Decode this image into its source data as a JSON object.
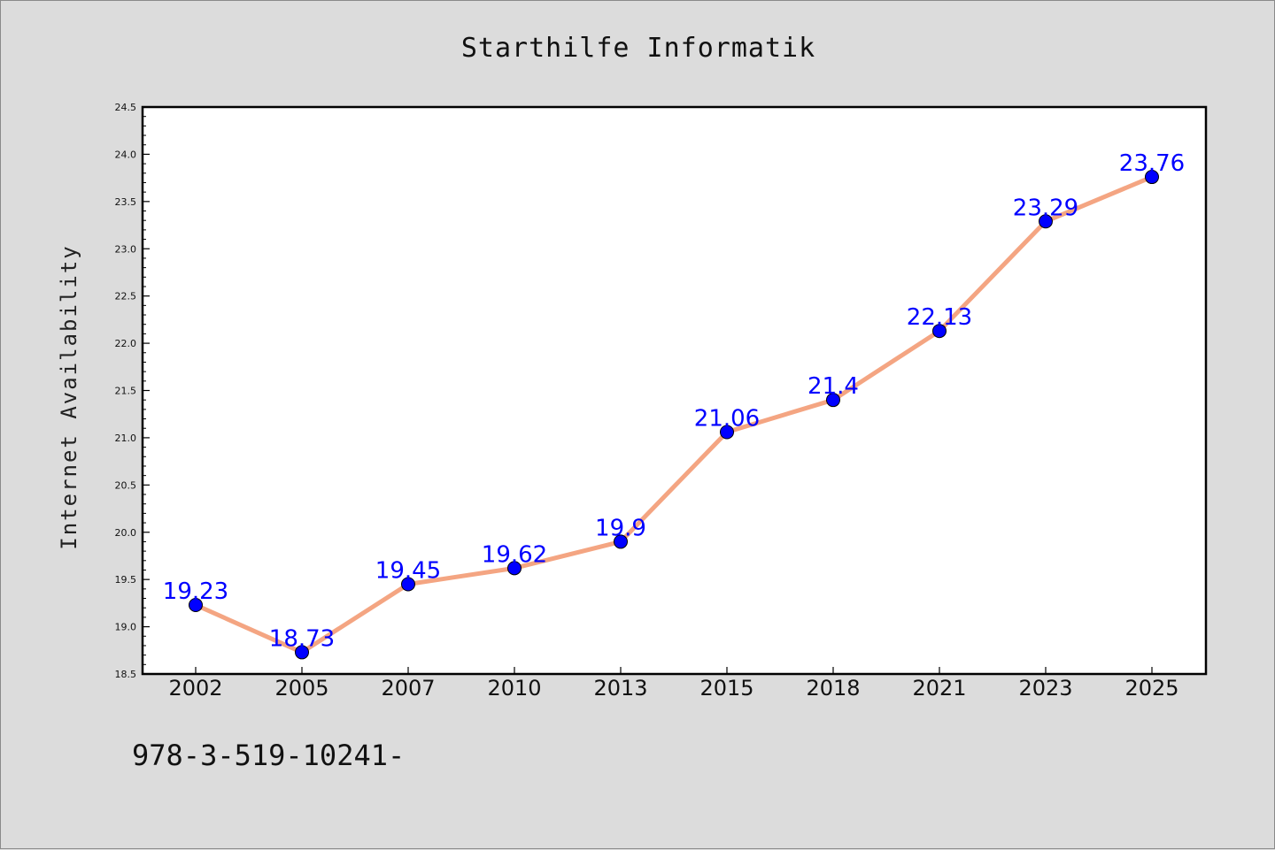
{
  "chart_data": {
    "type": "line",
    "title": "Starthilfe Informatik",
    "xlabel": "",
    "ylabel": "Internet Availability",
    "categories": [
      "2002",
      "2005",
      "2007",
      "2010",
      "2013",
      "2015",
      "2018",
      "2021",
      "2023",
      "2025"
    ],
    "series": [
      {
        "values": [
          19.23,
          18.73,
          19.45,
          19.62,
          19.9,
          21.06,
          21.4,
          22.13,
          23.29,
          23.76
        ],
        "labels": [
          "19.23",
          "18.73",
          "19.45",
          "19.62",
          "19.9",
          "21.06",
          "21.4",
          "22.13",
          "23.29",
          "23.76"
        ]
      }
    ],
    "ylim": [
      18.5,
      24.5
    ],
    "yticks": [
      "18.5",
      "19.0",
      "19.5",
      "20.0",
      "20.5",
      "21.0",
      "21.5",
      "22.0",
      "22.5",
      "23.0",
      "23.5",
      "24.0",
      "24.5"
    ],
    "grid": false,
    "line_color": "#f4a582",
    "marker_color": "#0000ff",
    "label_color": "#0000ff",
    "background_color": "#dcdcdc",
    "plot_background": "#ffffff"
  },
  "footer": {
    "text": "978-3-519-10241-"
  }
}
